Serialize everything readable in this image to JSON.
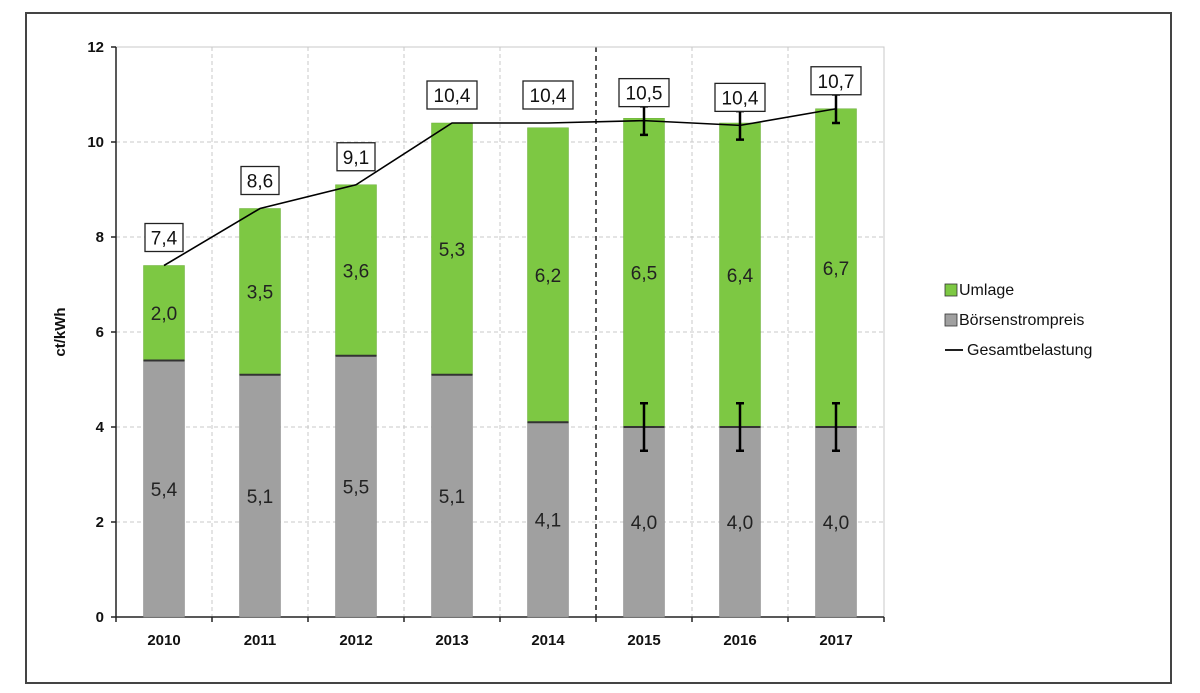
{
  "chart_data": {
    "type": "bar",
    "stacked": true,
    "categories": [
      "2010",
      "2011",
      "2012",
      "2013",
      "2014",
      "2015",
      "2016",
      "2017"
    ],
    "series": [
      {
        "name": "Börsenstrompreis",
        "values": [
          5.4,
          5.1,
          5.5,
          5.1,
          4.1,
          4.0,
          4.0,
          4.0
        ],
        "labels": [
          "5,4",
          "5,1",
          "5,5",
          "5,1",
          "4,1",
          "4,0",
          "4,0",
          "4,0"
        ],
        "color": "#a0a0a0"
      },
      {
        "name": "Umlage",
        "values": [
          2.0,
          3.5,
          3.6,
          5.3,
          6.2,
          6.5,
          6.4,
          6.7
        ],
        "labels": [
          "2,0",
          "3,5",
          "3,6",
          "5,3",
          "6,2",
          "6,5",
          "6,4",
          "6,7"
        ],
        "color": "#7dc843"
      }
    ],
    "line": {
      "name": "Gesamtbelastung",
      "values": [
        7.4,
        8.6,
        9.1,
        10.4,
        10.4,
        10.45,
        10.35,
        10.7
      ],
      "labels": [
        "7,4",
        "8,6",
        "9,1",
        "10,4",
        "10,4",
        "10,5",
        "10,4",
        "10,7"
      ],
      "color": "#000000"
    },
    "error_bars": {
      "categories": [
        "2015",
        "2016",
        "2017"
      ],
      "boerse_range": [
        [
          3.5,
          4.5
        ],
        [
          3.5,
          4.5
        ],
        [
          3.5,
          4.5
        ]
      ],
      "total_range": [
        [
          10.15,
          10.75
        ],
        [
          10.05,
          10.65
        ],
        [
          10.4,
          11.0
        ]
      ]
    },
    "ylabel": "ct/kWh",
    "ylim": [
      0,
      12
    ],
    "yticks": [
      "0",
      "2",
      "4",
      "6",
      "8",
      "10",
      "12"
    ],
    "grid": true,
    "forecast_divider_after": "2014",
    "legend": {
      "placement": "right",
      "entries": [
        "Umlage",
        "Börsenstrompreis",
        "Gesamtbelastung"
      ]
    },
    "colors": {
      "boerse": "#a0a0a0",
      "umlage": "#7dc843",
      "line": "#000000",
      "grid": "#c8c8c8"
    }
  }
}
